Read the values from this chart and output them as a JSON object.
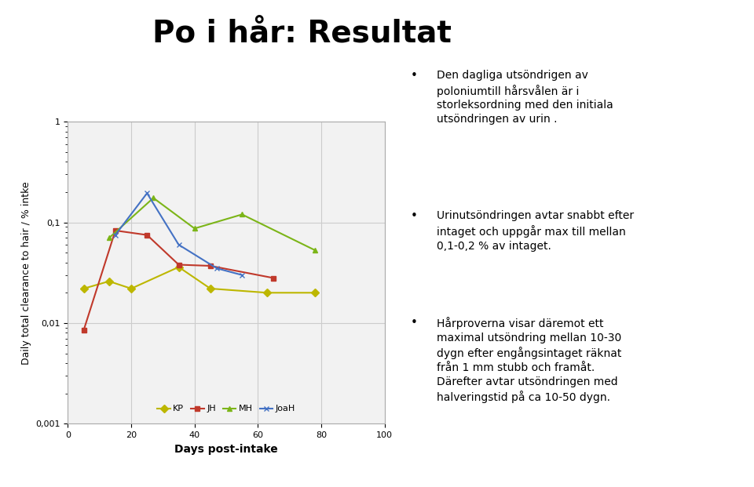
{
  "title": "Po i hår: Resultat",
  "xlabel": "Days post-intake",
  "ylabel": "Daily total clearance to hair / % intke",
  "xlim": [
    0,
    100
  ],
  "ylim_log": [
    0.001,
    1
  ],
  "series": {
    "KP": {
      "x": [
        5,
        13,
        20,
        35,
        45,
        63,
        78
      ],
      "y": [
        0.022,
        0.026,
        0.022,
        0.036,
        0.022,
        0.02,
        0.02
      ],
      "color": "#BDB700",
      "marker": "D",
      "linestyle": "-"
    },
    "JH": {
      "x": [
        5,
        15,
        25,
        35,
        45,
        65
      ],
      "y": [
        0.0085,
        0.083,
        0.075,
        0.038,
        0.037,
        0.028
      ],
      "color": "#C0392B",
      "marker": "s",
      "linestyle": "-"
    },
    "MH": {
      "x": [
        13,
        27,
        40,
        55,
        78
      ],
      "y": [
        0.07,
        0.175,
        0.087,
        0.12,
        0.053
      ],
      "color": "#7CB518",
      "marker": "^",
      "linestyle": "-"
    },
    "JoaH": {
      "x": [
        15,
        25,
        35,
        47,
        55
      ],
      "y": [
        0.075,
        0.195,
        0.06,
        0.035,
        0.03
      ],
      "color": "#4472C4",
      "marker": "x",
      "linestyle": "-"
    }
  },
  "bullet_points": [
    "Den dagliga utsöndrigen av\npoloniumtill hårsvålen är i\nstorleksordning med den initiala\nutsöndringen av urin .",
    "Urinutsöndringen avtar snabbt efter\nintaget och uppgår max till mellan\n0,1-0,2 % av intaget.",
    "Hårproverna visar däremot ett\nmaximal utsöndring mellan 10-30\ndygn efter engångsintaget räknat\nfrån 1 mm stubb och framåt.\nDärefter avtar utsöndringen med\nhalveringstid på ca 10-50 dygn."
  ],
  "background_color": "#FFFFFF",
  "grid_color": "#CCCCCC",
  "chart_bg": "#EFEFEF",
  "title_fontsize": 28,
  "axis_label_fontsize": 9,
  "tick_fontsize": 8,
  "bullet_fontsize": 10,
  "legend_fontsize": 8
}
